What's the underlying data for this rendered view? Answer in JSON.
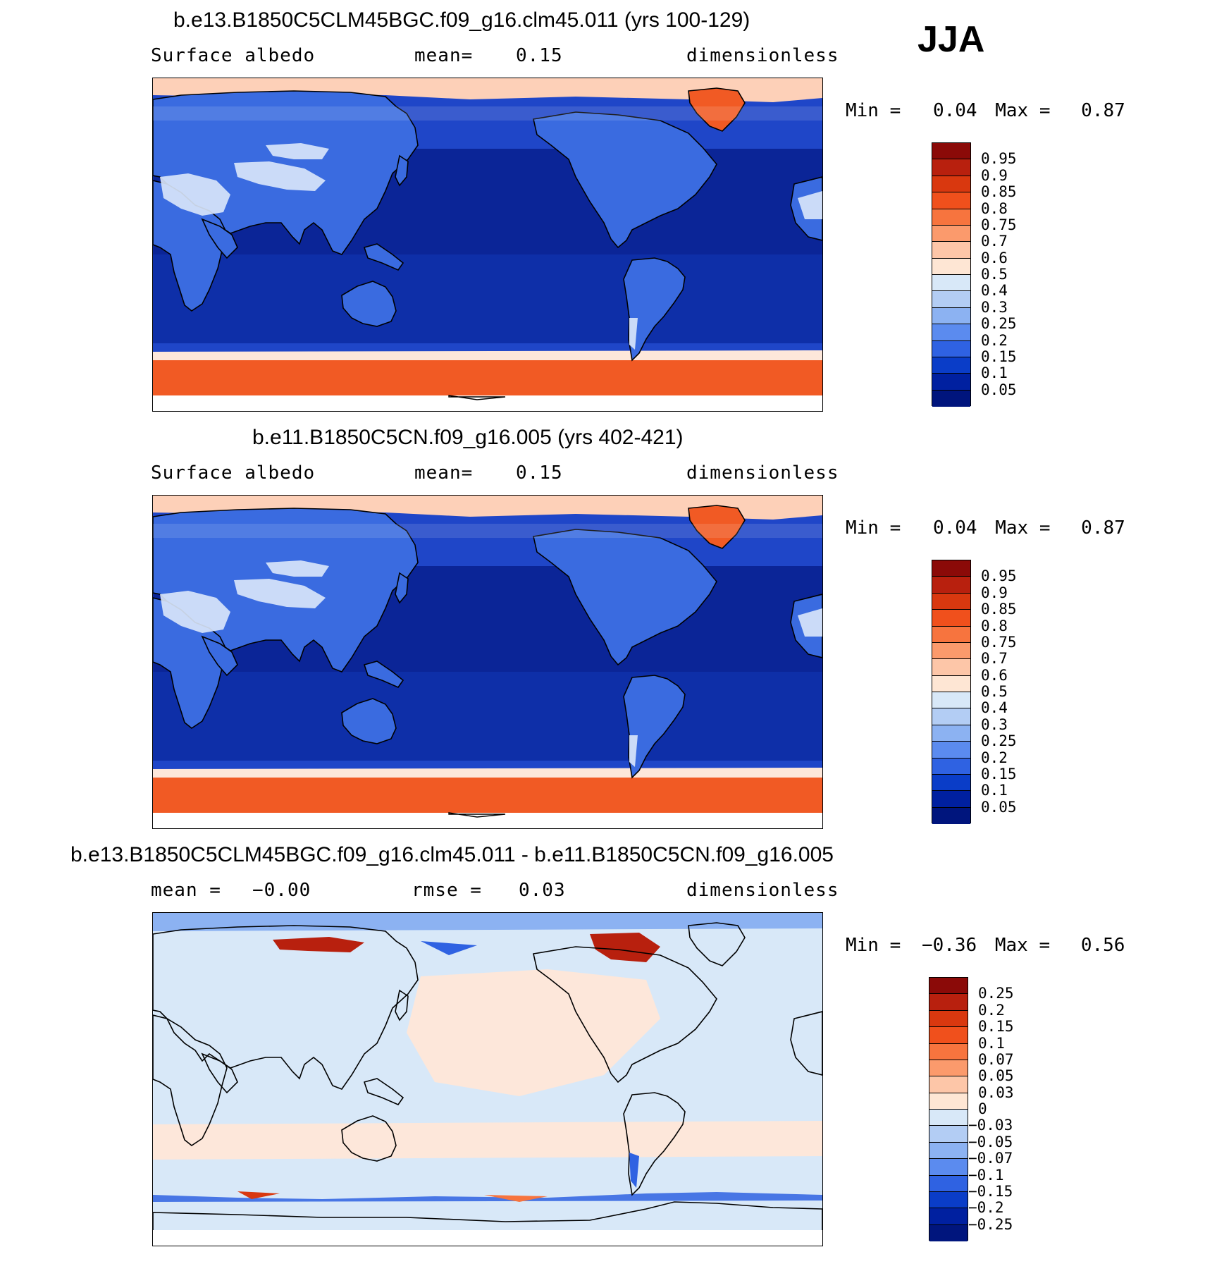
{
  "season": "JJA",
  "panels": [
    {
      "title": "b.e13.B1850C5CLM45BGC.f09_g16.clm45.011 (yrs 100-129)",
      "sub_left": "Surface albedo",
      "sub_mid_label": "mean=",
      "sub_mid_value": "0.15",
      "units": "dimensionless",
      "min_label": "Min =",
      "min_value": "0.04",
      "max_label": "Max =",
      "max_value": "0.87",
      "colorbar": {
        "labels": [
          "0.95",
          "0.9",
          "0.85",
          "0.8",
          "0.75",
          "0.7",
          "0.6",
          "0.5",
          "0.4",
          "0.3",
          "0.25",
          "0.2",
          "0.15",
          "0.1",
          "0.05"
        ],
        "colors": [
          "#8b0a08",
          "#b8200e",
          "#d9380f",
          "#f0501c",
          "#f7743e",
          "#fb9a6c",
          "#fdc6a8",
          "#fee6d4",
          "#d8e8f8",
          "#b3cdf4",
          "#8cb2f2",
          "#5b8bef",
          "#2f62e2",
          "#0a3dc8",
          "#0020a0",
          "#00157d"
        ]
      },
      "fields": {
        "ocean": "#0b2597",
        "polar_ocean": "#1f46c8",
        "land": "#3a6be0",
        "desert": "#dbe8fb",
        "sea_ice_north": "#fdd0b8",
        "ice_sheet": "#f15a24",
        "antarctic_band": "#fde7da"
      }
    },
    {
      "title": "b.e11.B1850C5CN.f09_g16.005 (yrs 402-421)",
      "sub_left": "Surface albedo",
      "sub_mid_label": "mean=",
      "sub_mid_value": "0.15",
      "units": "dimensionless",
      "min_label": "Min =",
      "min_value": "0.04",
      "max_label": "Max =",
      "max_value": "0.87",
      "colorbar": {
        "labels": [
          "0.95",
          "0.9",
          "0.85",
          "0.8",
          "0.75",
          "0.7",
          "0.6",
          "0.5",
          "0.4",
          "0.3",
          "0.25",
          "0.2",
          "0.15",
          "0.1",
          "0.05"
        ],
        "colors": [
          "#8b0a08",
          "#b8200e",
          "#d9380f",
          "#f0501c",
          "#f7743e",
          "#fb9a6c",
          "#fdc6a8",
          "#fee6d4",
          "#d8e8f8",
          "#b3cdf4",
          "#8cb2f2",
          "#5b8bef",
          "#2f62e2",
          "#0a3dc8",
          "#0020a0",
          "#00157d"
        ]
      },
      "fields": {
        "ocean": "#0b2597",
        "polar_ocean": "#1f46c8",
        "land": "#3a6be0",
        "desert": "#dbe8fb",
        "sea_ice_north": "#fdd0b8",
        "ice_sheet": "#f15a24",
        "antarctic_band": "#fde7da"
      }
    },
    {
      "title": "b.e13.B1850C5CLM45BGC.f09_g16.clm45.011 - b.e11.B1850C5CN.f09_g16.005",
      "sub_left": "mean =",
      "sub_left_value": "−0.00",
      "sub_mid_label": "rmse =",
      "sub_mid_value": "0.03",
      "units": "dimensionless",
      "min_label": "Min =",
      "min_value": "−0.36",
      "max_label": "Max =",
      "max_value": "0.56",
      "colorbar": {
        "labels": [
          "0.25",
          "0.2",
          "0.15",
          "0.1",
          "0.07",
          "0.05",
          "0.03",
          "0",
          "−0.03",
          "−0.05",
          "−0.07",
          "−0.1",
          "−0.15",
          "−0.2",
          "−0.25"
        ],
        "colors": [
          "#8b0a08",
          "#b8200e",
          "#d9380f",
          "#f0501c",
          "#f7743e",
          "#fb9a6c",
          "#fdc6a8",
          "#fee6d4",
          "#d8e8f8",
          "#b3cdf4",
          "#8cb2f2",
          "#5b8bef",
          "#2f62e2",
          "#0a3dc8",
          "#0020a0",
          "#00157d"
        ]
      },
      "fields": {
        "background": "#d8e8f8",
        "positive": "#fde7da",
        "strong_positive": "#b8200e",
        "negative": "#2f62e2"
      }
    }
  ]
}
